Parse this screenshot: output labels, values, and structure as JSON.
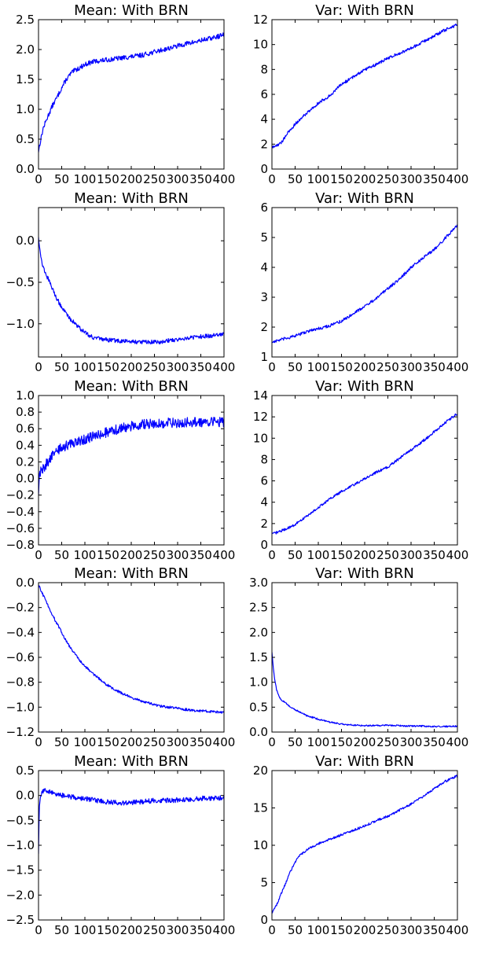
{
  "chart_data": [
    {
      "type": "line",
      "title": "Mean: With BRN",
      "xlim": [
        0,
        400
      ],
      "ylim": [
        0.0,
        2.5
      ],
      "xticks": [
        0,
        50,
        100,
        150,
        200,
        250,
        300,
        350,
        400
      ],
      "xtick_labels": [
        "0",
        "50",
        "100",
        "150",
        "200",
        "250",
        "300",
        "350",
        "400"
      ],
      "yticks": [
        0.0,
        0.5,
        1.0,
        1.5,
        2.0,
        2.5
      ],
      "ytick_labels": [
        "0.0",
        "0.5",
        "1.0",
        "1.5",
        "2.0",
        "2.5"
      ],
      "series": [
        {
          "color": "#0000ff",
          "noise": 0.04,
          "x": [
            0,
            5,
            10,
            20,
            30,
            40,
            50,
            60,
            70,
            80,
            90,
            100,
            120,
            140,
            160,
            180,
            200,
            220,
            240,
            260,
            280,
            300,
            320,
            340,
            360,
            380,
            400
          ],
          "y": [
            0.3,
            0.5,
            0.68,
            0.88,
            1.06,
            1.2,
            1.36,
            1.5,
            1.6,
            1.66,
            1.7,
            1.75,
            1.8,
            1.82,
            1.84,
            1.86,
            1.88,
            1.9,
            1.94,
            1.98,
            2.02,
            2.06,
            2.1,
            2.13,
            2.17,
            2.2,
            2.25
          ]
        }
      ]
    },
    {
      "type": "line",
      "title": "Var: With BRN",
      "xlim": [
        0,
        400
      ],
      "ylim": [
        0,
        12
      ],
      "xticks": [
        0,
        50,
        100,
        150,
        200,
        250,
        300,
        350,
        400
      ],
      "xtick_labels": [
        "0",
        "50",
        "100",
        "150",
        "200",
        "250",
        "300",
        "350",
        "400"
      ],
      "yticks": [
        0,
        2,
        4,
        6,
        8,
        10,
        12
      ],
      "ytick_labels": [
        "0",
        "2",
        "4",
        "6",
        "8",
        "10",
        "12"
      ],
      "series": [
        {
          "color": "#0000ff",
          "noise": 0.12,
          "x": [
            0,
            10,
            20,
            30,
            50,
            75,
            100,
            125,
            150,
            175,
            200,
            225,
            250,
            275,
            300,
            325,
            350,
            375,
            400
          ],
          "y": [
            1.7,
            1.9,
            2.1,
            2.7,
            3.6,
            4.5,
            5.3,
            5.9,
            6.8,
            7.4,
            8.0,
            8.4,
            8.9,
            9.3,
            9.7,
            10.2,
            10.7,
            11.2,
            11.6
          ]
        }
      ]
    },
    {
      "type": "line",
      "title": "Mean: With BRN",
      "xlim": [
        0,
        400
      ],
      "ylim": [
        -1.4,
        0.4
      ],
      "xticks": [
        0,
        50,
        100,
        150,
        200,
        250,
        300,
        350,
        400
      ],
      "xtick_labels": [
        "0",
        "50",
        "100",
        "150",
        "200",
        "250",
        "300",
        "350",
        "400"
      ],
      "yticks": [
        -1.0,
        -0.5,
        0.0
      ],
      "ytick_labels": [
        "−1.0",
        "−0.5",
        "0.0"
      ],
      "series": [
        {
          "color": "#0000ff",
          "noise": 0.025,
          "x": [
            0,
            5,
            10,
            20,
            30,
            40,
            50,
            60,
            70,
            80,
            90,
            100,
            110,
            120,
            140,
            160,
            180,
            200,
            220,
            240,
            260,
            280,
            300,
            320,
            340,
            360,
            380,
            400
          ],
          "y": [
            0.05,
            -0.2,
            -0.32,
            -0.45,
            -0.58,
            -0.7,
            -0.8,
            -0.88,
            -0.95,
            -1.0,
            -1.06,
            -1.1,
            -1.14,
            -1.17,
            -1.19,
            -1.2,
            -1.21,
            -1.21,
            -1.22,
            -1.22,
            -1.22,
            -1.2,
            -1.19,
            -1.17,
            -1.16,
            -1.15,
            -1.14,
            -1.12
          ]
        }
      ]
    },
    {
      "type": "line",
      "title": "Var: With BRN",
      "xlim": [
        0,
        400
      ],
      "ylim": [
        1,
        6
      ],
      "xticks": [
        0,
        50,
        100,
        150,
        200,
        250,
        300,
        350,
        400
      ],
      "xtick_labels": [
        "0",
        "50",
        "100",
        "150",
        "200",
        "250",
        "300",
        "350",
        "400"
      ],
      "yticks": [
        1,
        2,
        3,
        4,
        5,
        6
      ],
      "ytick_labels": [
        "1",
        "2",
        "3",
        "4",
        "5",
        "6"
      ],
      "series": [
        {
          "color": "#0000ff",
          "noise": 0.05,
          "x": [
            0,
            25,
            50,
            75,
            100,
            125,
            150,
            175,
            200,
            225,
            250,
            275,
            300,
            325,
            350,
            375,
            400
          ],
          "y": [
            1.5,
            1.6,
            1.7,
            1.85,
            1.95,
            2.05,
            2.2,
            2.45,
            2.7,
            2.95,
            3.3,
            3.6,
            4.0,
            4.3,
            4.6,
            5.0,
            5.4
          ]
        }
      ]
    },
    {
      "type": "line",
      "title": "Mean: With BRN",
      "xlim": [
        0,
        400
      ],
      "ylim": [
        -0.8,
        1.0
      ],
      "xticks": [
        0,
        50,
        100,
        150,
        200,
        250,
        300,
        350,
        400
      ],
      "xtick_labels": [
        "0",
        "50",
        "100",
        "150",
        "200",
        "250",
        "300",
        "350",
        "400"
      ],
      "yticks": [
        -0.8,
        -0.6,
        -0.4,
        -0.2,
        0.0,
        0.2,
        0.4,
        0.6,
        0.8,
        1.0
      ],
      "ytick_labels": [
        "−0.8",
        "−0.6",
        "−0.4",
        "−0.2",
        "0.0",
        "0.2",
        "0.4",
        "0.6",
        "0.8",
        "1.0"
      ],
      "series": [
        {
          "color": "#0000ff",
          "noise": 0.06,
          "x": [
            0,
            2,
            5,
            10,
            20,
            30,
            40,
            50,
            75,
            100,
            125,
            150,
            175,
            200,
            225,
            250,
            275,
            300,
            325,
            350,
            375,
            400
          ],
          "y": [
            -0.2,
            0.05,
            0.1,
            0.12,
            0.2,
            0.28,
            0.33,
            0.37,
            0.43,
            0.47,
            0.52,
            0.56,
            0.6,
            0.63,
            0.65,
            0.66,
            0.67,
            0.67,
            0.68,
            0.68,
            0.68,
            0.68
          ]
        }
      ]
    },
    {
      "type": "line",
      "title": "Var: With BRN",
      "xlim": [
        0,
        400
      ],
      "ylim": [
        0,
        14
      ],
      "xticks": [
        0,
        50,
        100,
        150,
        200,
        250,
        300,
        350,
        400
      ],
      "xtick_labels": [
        "0",
        "50",
        "100",
        "150",
        "200",
        "250",
        "300",
        "350",
        "400"
      ],
      "yticks": [
        0,
        2,
        4,
        6,
        8,
        10,
        12,
        14
      ],
      "ytick_labels": [
        "0",
        "2",
        "4",
        "6",
        "8",
        "10",
        "12",
        "14"
      ],
      "series": [
        {
          "color": "#0000ff",
          "noise": 0.12,
          "x": [
            0,
            25,
            50,
            75,
            100,
            125,
            150,
            175,
            200,
            225,
            250,
            275,
            300,
            325,
            350,
            375,
            400
          ],
          "y": [
            1.0,
            1.4,
            1.9,
            2.7,
            3.5,
            4.3,
            5.0,
            5.6,
            6.2,
            6.8,
            7.3,
            8.1,
            8.9,
            9.7,
            10.6,
            11.5,
            12.3
          ]
        }
      ]
    },
    {
      "type": "line",
      "title": "Mean: With BRN",
      "xlim": [
        0,
        400
      ],
      "ylim": [
        -1.2,
        0.0
      ],
      "xticks": [
        0,
        50,
        100,
        150,
        200,
        250,
        300,
        350,
        400
      ],
      "xtick_labels": [
        "0",
        "50",
        "100",
        "150",
        "200",
        "250",
        "300",
        "350",
        "400"
      ],
      "yticks": [
        -1.2,
        -1.0,
        -0.8,
        -0.6,
        -0.4,
        -0.2,
        0.0
      ],
      "ytick_labels": [
        "−1.2",
        "−1.0",
        "−0.8",
        "−0.6",
        "−0.4",
        "−0.2",
        "0.0"
      ],
      "series": [
        {
          "color": "#0000ff",
          "noise": 0.01,
          "x": [
            0,
            5,
            10,
            20,
            30,
            40,
            50,
            60,
            70,
            80,
            90,
            100,
            120,
            140,
            160,
            180,
            200,
            220,
            240,
            260,
            280,
            300,
            320,
            340,
            360,
            380,
            400
          ],
          "y": [
            -0.02,
            -0.06,
            -0.1,
            -0.18,
            -0.26,
            -0.33,
            -0.4,
            -0.47,
            -0.53,
            -0.58,
            -0.63,
            -0.67,
            -0.74,
            -0.8,
            -0.85,
            -0.89,
            -0.92,
            -0.95,
            -0.97,
            -0.99,
            -1.0,
            -1.01,
            -1.02,
            -1.03,
            -1.03,
            -1.04,
            -1.04
          ]
        }
      ]
    },
    {
      "type": "line",
      "title": "Var: With BRN",
      "xlim": [
        0,
        400
      ],
      "ylim": [
        0.0,
        3.0
      ],
      "xticks": [
        0,
        50,
        100,
        150,
        200,
        250,
        300,
        350,
        400
      ],
      "xtick_labels": [
        "0",
        "50",
        "100",
        "150",
        "200",
        "250",
        "300",
        "350",
        "400"
      ],
      "yticks": [
        0.0,
        0.5,
        1.0,
        1.5,
        2.0,
        2.5,
        3.0
      ],
      "ytick_labels": [
        "0.0",
        "0.5",
        "1.0",
        "1.5",
        "2.0",
        "2.5",
        "3.0"
      ],
      "series": [
        {
          "color": "#0000ff",
          "noise": 0.015,
          "x": [
            0,
            3,
            6,
            10,
            15,
            20,
            30,
            40,
            50,
            60,
            75,
            100,
            125,
            150,
            175,
            200,
            225,
            250,
            275,
            300,
            325,
            350,
            375,
            400
          ],
          "y": [
            1.6,
            1.3,
            1.05,
            0.85,
            0.72,
            0.65,
            0.58,
            0.5,
            0.45,
            0.4,
            0.33,
            0.26,
            0.2,
            0.16,
            0.14,
            0.13,
            0.13,
            0.14,
            0.13,
            0.12,
            0.12,
            0.11,
            0.11,
            0.12
          ]
        }
      ]
    },
    {
      "type": "line",
      "title": "Mean: With BRN",
      "xlim": [
        0,
        400
      ],
      "ylim": [
        -2.5,
        0.5
      ],
      "xticks": [
        0,
        50,
        100,
        150,
        200,
        250,
        300,
        350,
        400
      ],
      "xtick_labels": [
        "0",
        "50",
        "100",
        "150",
        "200",
        "250",
        "300",
        "350",
        "400"
      ],
      "yticks": [
        -2.5,
        -2.0,
        -1.5,
        -1.0,
        -0.5,
        0.0,
        0.5
      ],
      "ytick_labels": [
        "−2.5",
        "−2.0",
        "−1.5",
        "−1.0",
        "−0.5",
        "0.0",
        "0.5"
      ],
      "series": [
        {
          "color": "#0000ff",
          "noise": 0.05,
          "x": [
            0,
            1,
            2,
            4,
            8,
            15,
            25,
            50,
            75,
            100,
            125,
            150,
            175,
            200,
            225,
            250,
            275,
            300,
            325,
            350,
            375,
            400
          ],
          "y": [
            -1.2,
            -0.6,
            -0.2,
            0.0,
            0.08,
            0.1,
            0.07,
            0.0,
            -0.03,
            -0.07,
            -0.1,
            -0.13,
            -0.15,
            -0.14,
            -0.12,
            -0.1,
            -0.1,
            -0.09,
            -0.08,
            -0.06,
            -0.05,
            -0.05
          ]
        }
      ]
    },
    {
      "type": "line",
      "title": "Var: With BRN",
      "xlim": [
        0,
        400
      ],
      "ylim": [
        0,
        20
      ],
      "xticks": [
        0,
        50,
        100,
        150,
        200,
        250,
        300,
        350,
        400
      ],
      "xtick_labels": [
        "0",
        "50",
        "100",
        "150",
        "200",
        "250",
        "300",
        "350",
        "400"
      ],
      "yticks": [
        0,
        5,
        10,
        15,
        20
      ],
      "ytick_labels": [
        "0",
        "5",
        "10",
        "15",
        "20"
      ],
      "series": [
        {
          "color": "#0000ff",
          "noise": 0.15,
          "x": [
            0,
            10,
            20,
            30,
            40,
            50,
            60,
            75,
            100,
            125,
            150,
            175,
            200,
            225,
            250,
            275,
            300,
            325,
            350,
            375,
            400
          ],
          "y": [
            1.0,
            2.0,
            3.5,
            5.0,
            6.5,
            7.8,
            8.6,
            9.4,
            10.2,
            10.8,
            11.4,
            12.0,
            12.6,
            13.3,
            13.9,
            14.7,
            15.5,
            16.5,
            17.6,
            18.6,
            19.3
          ]
        }
      ]
    }
  ]
}
